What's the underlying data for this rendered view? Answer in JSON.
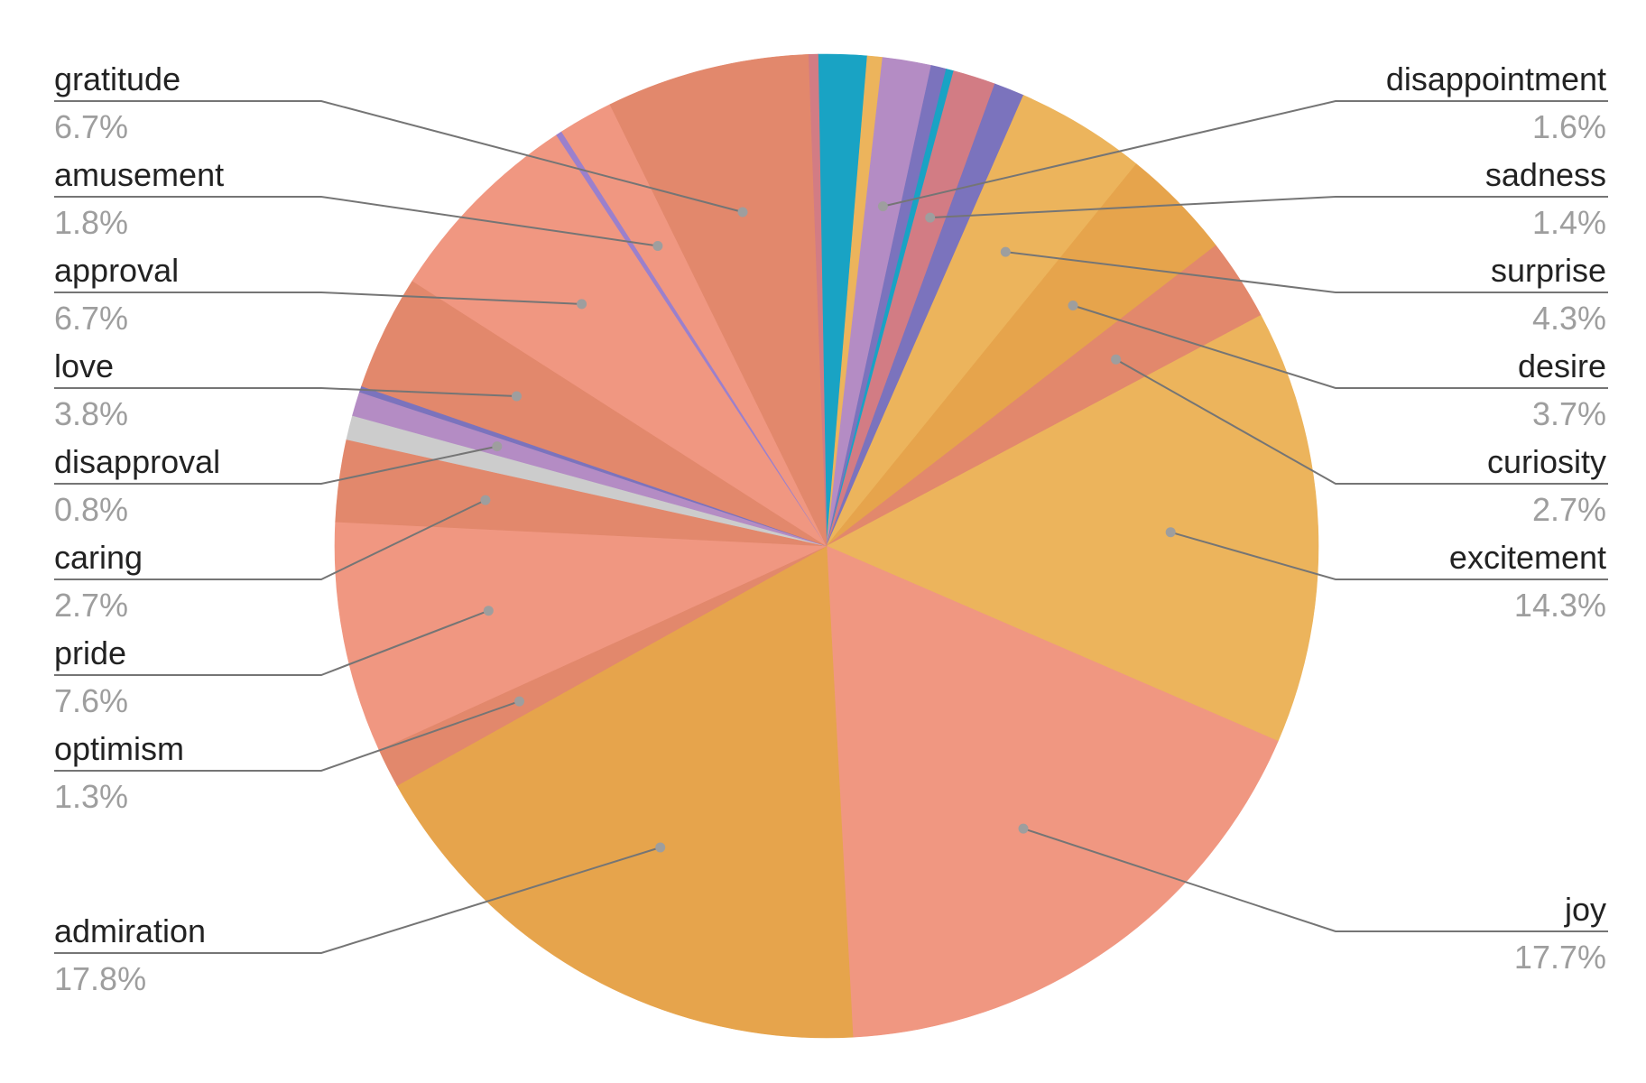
{
  "chart_data": {
    "type": "pie",
    "title": "",
    "start_angle_deg": -1,
    "slices": [
      {
        "label": "",
        "value": 1.6,
        "color": "#19a3c4"
      },
      {
        "label": "",
        "value": 0.5,
        "color": "#ecb45c"
      },
      {
        "label": "disappointment",
        "value": 1.6,
        "pct": "1.6%",
        "color": "#b48cc4"
      },
      {
        "label": "",
        "value": 0.5,
        "color": "#7b73bd"
      },
      {
        "label": "",
        "value": 0.25,
        "color": "#19a3c4"
      },
      {
        "label": "sadness",
        "value": 1.4,
        "pct": "1.4%",
        "color": "#d27c84"
      },
      {
        "label": "",
        "value": 1.0,
        "color": "#7b73bd"
      },
      {
        "label": "surprise",
        "value": 4.3,
        "pct": "4.3%",
        "color": "#ecb45c"
      },
      {
        "label": "desire",
        "value": 3.7,
        "pct": "3.7%",
        "color": "#e6a44c"
      },
      {
        "label": "curiosity",
        "value": 2.7,
        "pct": "2.7%",
        "color": "#e2886c"
      },
      {
        "label": "excitement",
        "value": 14.3,
        "pct": "14.3%",
        "color": "#ecb45c"
      },
      {
        "label": "joy",
        "value": 17.7,
        "pct": "17.7%",
        "color": "#f09781"
      },
      {
        "label": "admiration",
        "value": 17.8,
        "pct": "17.8%",
        "color": "#e6a44c"
      },
      {
        "label": "optimism",
        "value": 1.3,
        "pct": "1.3%",
        "color": "#e2886c"
      },
      {
        "label": "pride",
        "value": 7.6,
        "pct": "7.6%",
        "color": "#f09781"
      },
      {
        "label": "caring",
        "value": 2.7,
        "pct": "2.7%",
        "color": "#e2886c"
      },
      {
        "label": "",
        "value": 0.8,
        "color": "#cccccc"
      },
      {
        "label": "disapproval",
        "value": 0.8,
        "pct": "0.8%",
        "color": "#b48cc4"
      },
      {
        "label": "",
        "value": 0.2,
        "color": "#7b73bd"
      },
      {
        "label": "love",
        "value": 3.8,
        "pct": "3.8%",
        "color": "#e2886c"
      },
      {
        "label": "approval",
        "value": 6.7,
        "pct": "6.7%",
        "color": "#f09781"
      },
      {
        "label": "",
        "value": 0.2,
        "color": "#9b80cc"
      },
      {
        "label": "amusement",
        "value": 1.8,
        "pct": "1.8%",
        "color": "#f09781"
      },
      {
        "label": "gratitude",
        "value": 6.7,
        "pct": "6.7%",
        "color": "#e2886c"
      },
      {
        "label": "",
        "value": 0.3,
        "color": "#d27c84"
      }
    ],
    "legend_position": "none",
    "data_labels": "outside with leader lines"
  }
}
